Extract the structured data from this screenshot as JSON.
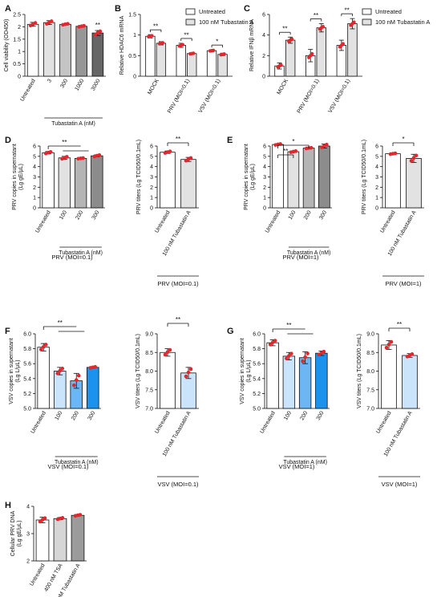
{
  "chart_data": [
    {
      "panel": "A",
      "type": "bar",
      "categories": [
        "Untreated",
        "3",
        "300",
        "1000",
        "3000"
      ],
      "values": [
        2.1,
        2.17,
        2.1,
        2.02,
        1.75
      ],
      "errors": [
        0.08,
        0.08,
        0.03,
        0.03,
        0.1
      ],
      "bar_colors": [
        "#ffffff",
        "#e2e2e2",
        "#c4c4c4",
        "#969696",
        "#666666"
      ],
      "sig": [
        {
          "i": 4,
          "text": "**"
        }
      ],
      "ylabel": "Cell viability (OD450)",
      "ylim": [
        0,
        2.5
      ],
      "yticks": [
        0,
        0.5,
        1.0,
        1.5,
        2.0,
        2.5
      ],
      "group_label": "Tubastatin A (nM)"
    },
    {
      "panel": "B",
      "type": "bar",
      "categories": [
        "MOCK",
        "PRV (MOI=0.1)",
        "VSV (MOI=0.1)"
      ],
      "series": [
        {
          "name": "Untreated",
          "values": [
            0.97,
            0.75,
            0.62
          ],
          "errors": [
            0.04,
            0.05,
            0.02
          ],
          "color": "#ffffff"
        },
        {
          "name": "100 nM Tubastatin A",
          "values": [
            0.8,
            0.55,
            0.53
          ],
          "errors": [
            0.04,
            0.02,
            0.03
          ],
          "color": "#e2e2e2"
        }
      ],
      "sig": [
        "**",
        "**",
        "*"
      ],
      "ylabel": "Relative HDAC6 mRNA",
      "ylim": [
        0,
        1.5
      ],
      "yticks": [
        0,
        0.5,
        1.0,
        1.5
      ]
    },
    {
      "panel": "C",
      "type": "bar",
      "categories": [
        "MOCK",
        "PRV (MOI=0.1)",
        "VSV (MOI=0.1)"
      ],
      "series": [
        {
          "name": "Untreated",
          "values": [
            1.0,
            2.0,
            3.0
          ],
          "errors": [
            0.3,
            0.6,
            0.5
          ],
          "color": "#ffffff"
        },
        {
          "name": "100 nM Tubastatin A",
          "values": [
            3.5,
            4.7,
            5.1
          ],
          "errors": [
            0.3,
            0.4,
            0.5
          ],
          "color": "#e2e2e2"
        }
      ],
      "sig": [
        "**",
        "**",
        "**"
      ],
      "ylabel": "Relative IFNβ mRNA",
      "ylim": [
        0,
        6
      ],
      "yticks": [
        0,
        2,
        4,
        6
      ]
    },
    {
      "panel": "D",
      "type": "bar",
      "categories": [
        "Untreated",
        "100",
        "200",
        "300"
      ],
      "values": [
        5.35,
        4.85,
        4.8,
        5.05
      ],
      "errors": [
        0.12,
        0.15,
        0.05,
        0.1
      ],
      "bar_colors": [
        "#ffffff",
        "#e2e2e2",
        "#b5b5b5",
        "#8c8c8c"
      ],
      "sig": [
        "**"
      ],
      "ylabel": "PRV copies in supernatant (Lg gE/μL)",
      "ylim": [
        0,
        6
      ],
      "yticks": [
        0,
        1,
        2,
        3,
        4,
        5,
        6
      ],
      "group_label": "Tubastatin A (nM)",
      "condition": "PRV (MOI=0.1)"
    },
    {
      "panel": "D-right",
      "type": "bar",
      "categories": [
        "Untreated",
        "100 nM Tubastatin A"
      ],
      "values": [
        5.4,
        4.7
      ],
      "errors": [
        0.12,
        0.2
      ],
      "bar_colors": [
        "#ffffff",
        "#e2e2e2"
      ],
      "sig": [
        "**"
      ],
      "ylabel": "PRV titers (Lg TCID50/0.1mL)",
      "ylim": [
        0,
        6
      ],
      "yticks": [
        0,
        1,
        2,
        3,
        4,
        5,
        6
      ],
      "condition": "PRV (MOI=0.1)"
    },
    {
      "panel": "E",
      "type": "bar",
      "categories": [
        "Untreated",
        "100",
        "200",
        "300"
      ],
      "values": [
        6.15,
        5.45,
        5.8,
        6.0
      ],
      "errors": [
        0.07,
        0.08,
        0.05,
        0.2
      ],
      "bar_colors": [
        "#ffffff",
        "#e2e2e2",
        "#b5b5b5",
        "#8c8c8c"
      ],
      "sig": [
        "**",
        "*"
      ],
      "ylabel": "PRV copies in supernatant (Lg gE/μL)",
      "ylim": [
        0,
        6
      ],
      "yticks": [
        0,
        1,
        2,
        3,
        4,
        5,
        6
      ],
      "group_label": "Tubastatin A (nM)",
      "condition": "PRV (MOI=1)"
    },
    {
      "panel": "E-right",
      "type": "bar",
      "categories": [
        "Untreated",
        "100 nM Tubastatin A"
      ],
      "values": [
        5.25,
        4.8
      ],
      "errors": [
        0.06,
        0.4
      ],
      "bar_colors": [
        "#ffffff",
        "#e2e2e2"
      ],
      "sig": [
        "*"
      ],
      "ylabel": "PRV titers (Lg TCID50/0.1mL)",
      "ylim": [
        0,
        6
      ],
      "yticks": [
        0,
        1,
        2,
        3,
        4,
        5,
        6
      ],
      "condition": "PRV (MOI=1)"
    },
    {
      "panel": "F",
      "type": "bar",
      "categories": [
        "Untreated",
        "100",
        "200",
        "300"
      ],
      "values": [
        5.82,
        5.5,
        5.37,
        5.55
      ],
      "errors": [
        0.05,
        0.05,
        0.1,
        0.01
      ],
      "bar_colors": [
        "#ffffff",
        "#c9e4fb",
        "#6bb6f3",
        "#1a93ee"
      ],
      "sig": [
        "**"
      ],
      "ylabel": "VSV copies in supernatant (Lg L/μL)",
      "ylim": [
        5.0,
        6.0
      ],
      "yticks": [
        5.0,
        5.2,
        5.4,
        5.6,
        5.8,
        6.0
      ],
      "ytick_labels": [
        "5.0",
        "5.2",
        "5.4",
        "5.6",
        "5.8",
        "6.0"
      ],
      "group_label": "Tubastatin A (nM)",
      "condition": "VSV (MOI=0.1)"
    },
    {
      "panel": "F-right",
      "type": "bar",
      "categories": [
        "Untreated",
        "100 nM Tubastatin A"
      ],
      "values": [
        8.5,
        7.95
      ],
      "errors": [
        0.1,
        0.15
      ],
      "bar_colors": [
        "#ffffff",
        "#c9e4fb"
      ],
      "sig": [
        "**"
      ],
      "ylabel": "VSV titers (Lg TCID50/0.1mL)",
      "ylim": [
        7.0,
        9.0
      ],
      "yticks": [
        7.0,
        7.5,
        8.0,
        8.5,
        9.0
      ],
      "ytick_labels": [
        "7.0",
        "7.5",
        "8.0",
        "8.5",
        "9.0"
      ],
      "condition": "VSV (MOI=0.1)"
    },
    {
      "panel": "G",
      "type": "bar",
      "categories": [
        "Untreated",
        "100",
        "200",
        "300"
      ],
      "values": [
        5.88,
        5.7,
        5.68,
        5.74
      ],
      "errors": [
        0.04,
        0.05,
        0.08,
        0.03
      ],
      "bar_colors": [
        "#ffffff",
        "#c9e4fb",
        "#6bb6f3",
        "#1a93ee"
      ],
      "sig": [
        "**"
      ],
      "ylabel": "VSV copies in supernatant (Lg L/μL)",
      "ylim": [
        5.0,
        6.0
      ],
      "yticks": [
        5.0,
        5.2,
        5.4,
        5.6,
        5.8,
        6.0
      ],
      "ytick_labels": [
        "5.0",
        "5.2",
        "5.4",
        "5.6",
        "5.8",
        "6.0"
      ],
      "group_label": "Tubastatin A (nM)",
      "condition": "VSV (MOI=1)"
    },
    {
      "panel": "G-right",
      "type": "bar",
      "categories": [
        "Untreated",
        "100 nM Tubastatin A"
      ],
      "values": [
        8.7,
        8.42
      ],
      "errors": [
        0.12,
        0.05
      ],
      "bar_colors": [
        "#ffffff",
        "#c9e4fb"
      ],
      "sig": [
        "**"
      ],
      "ylabel": "VSV titers (Lg TCID50/0.1mL)",
      "ylim": [
        7.0,
        9.0
      ],
      "yticks": [
        7.0,
        7.5,
        8.0,
        8.5,
        9.0
      ],
      "ytick_labels": [
        "7.0",
        "7.5",
        "8.0",
        "8.5",
        "9.0"
      ],
      "condition": "VSV (MOI=1)"
    },
    {
      "panel": "H",
      "type": "bar",
      "categories": [
        "Untreated",
        "400 nM TSA",
        "100 nM Tubastatin A"
      ],
      "values": [
        3.5,
        3.55,
        3.67
      ],
      "errors": [
        0.1,
        0.04,
        0.03
      ],
      "bar_colors": [
        "#ffffff",
        "#d6d6d6",
        "#9b9b9b"
      ],
      "ylabel": "Cellular PRV DNA (Lg gE/μL)",
      "ylim": [
        2,
        4
      ],
      "yticks": [
        2,
        3,
        4
      ]
    }
  ]
}
